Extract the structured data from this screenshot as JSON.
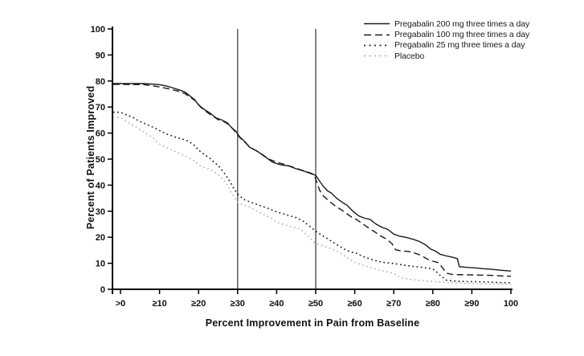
{
  "figure": {
    "background": "#ffffff"
  },
  "chart_data": {
    "type": "line",
    "title": "",
    "xlabel": "Percent Improvement in Pain from Baseline",
    "ylabel": "Percent of Patients Improved",
    "xlim": [
      0,
      100
    ],
    "ylim": [
      0,
      100
    ],
    "grid": false,
    "legend_position": "top-right",
    "axis_color": "#000000",
    "reference_line_color": "#333333",
    "x_tick_values": [
      0,
      10,
      20,
      30,
      40,
      50,
      60,
      70,
      80,
      90,
      100
    ],
    "x_tick_labels": [
      ">0",
      "≥10",
      "≥20",
      "≥30",
      "≥40",
      "≥50",
      "≥60",
      "≥70",
      "≥80",
      "≥90",
      "100"
    ],
    "y_tick_values": [
      0,
      10,
      20,
      30,
      40,
      50,
      60,
      70,
      80,
      90,
      100
    ],
    "y_tick_labels": [
      "0",
      "10",
      "20",
      "30",
      "40",
      "50",
      "60",
      "70",
      "80",
      "90",
      "100"
    ],
    "reference_lines_x": [
      30,
      50
    ],
    "series": [
      {
        "name": "Pregabalin 200 mg three times a day",
        "key": "pregabalin-200mg",
        "style": "solid",
        "color": "#1a1a1a",
        "width": 1.4,
        "points": [
          [
            0,
            79
          ],
          [
            6,
            79
          ],
          [
            10,
            78.6
          ],
          [
            12,
            78
          ],
          [
            13.5,
            77.3
          ],
          [
            15,
            76.6
          ],
          [
            16.5,
            75.8
          ],
          [
            18,
            74
          ],
          [
            19,
            72.8
          ],
          [
            20,
            70.8
          ],
          [
            21.5,
            69
          ],
          [
            23,
            67.6
          ],
          [
            24.5,
            65.8
          ],
          [
            26,
            65
          ],
          [
            27.5,
            63.8
          ],
          [
            28.5,
            62
          ],
          [
            29.5,
            60.8
          ],
          [
            30.5,
            58.6
          ],
          [
            32,
            56.5
          ],
          [
            33,
            54.6
          ],
          [
            35,
            53.1
          ],
          [
            37,
            50.9
          ],
          [
            39,
            48.8
          ],
          [
            41,
            47.8
          ],
          [
            43,
            47.4
          ],
          [
            45,
            46.3
          ],
          [
            47,
            45.4
          ],
          [
            49,
            44.3
          ],
          [
            50,
            43.8
          ],
          [
            51,
            41.5
          ],
          [
            52,
            39.5
          ],
          [
            53,
            37.8
          ],
          [
            54,
            37
          ],
          [
            55.5,
            34.8
          ],
          [
            57,
            33.2
          ],
          [
            58,
            32.3
          ],
          [
            59.5,
            30
          ],
          [
            61,
            28.2
          ],
          [
            62.5,
            27.3
          ],
          [
            64,
            26.8
          ],
          [
            65.5,
            25
          ],
          [
            67,
            23.8
          ],
          [
            68.5,
            23
          ],
          [
            70,
            21.2
          ],
          [
            71.5,
            20.4
          ],
          [
            73,
            20
          ],
          [
            75,
            19.2
          ],
          [
            76.5,
            18.4
          ],
          [
            78,
            17.2
          ],
          [
            79.5,
            15.4
          ],
          [
            80.5,
            14.8
          ],
          [
            82,
            13.4
          ],
          [
            83.5,
            12.8
          ],
          [
            85,
            12.3
          ],
          [
            86.3,
            11.8
          ],
          [
            86.8,
            8.7
          ],
          [
            89,
            8.4
          ],
          [
            91,
            8.2
          ],
          [
            93,
            7.9
          ],
          [
            95,
            7.7
          ],
          [
            97.5,
            7.3
          ],
          [
            100,
            7
          ]
        ]
      },
      {
        "name": "Pregabalin 100 mg three times a day",
        "key": "pregabalin-100mg",
        "style": "dashed",
        "color": "#1a1a1a",
        "width": 1.4,
        "points": [
          [
            0,
            78.7
          ],
          [
            6,
            78.6
          ],
          [
            9,
            78
          ],
          [
            11,
            77.4
          ],
          [
            13,
            76.8
          ],
          [
            15,
            76
          ],
          [
            16.5,
            75.2
          ],
          [
            18,
            73.6
          ],
          [
            19.5,
            72
          ],
          [
            20.5,
            70
          ],
          [
            22,
            68.2
          ],
          [
            23.5,
            66.6
          ],
          [
            25,
            65.2
          ],
          [
            26.5,
            64.4
          ],
          [
            28,
            63
          ],
          [
            29,
            61.2
          ],
          [
            30.5,
            58.4
          ],
          [
            31.5,
            57
          ],
          [
            33,
            54.8
          ],
          [
            35,
            53
          ],
          [
            36.5,
            51.6
          ],
          [
            38,
            50
          ],
          [
            40,
            48.8
          ],
          [
            42,
            48
          ],
          [
            44,
            47
          ],
          [
            46,
            46
          ],
          [
            48,
            45
          ],
          [
            49.5,
            44.2
          ],
          [
            50,
            42.3
          ],
          [
            51,
            38
          ],
          [
            52,
            35.8
          ],
          [
            53.5,
            33.8
          ],
          [
            55,
            32
          ],
          [
            56.5,
            30.6
          ],
          [
            58,
            29
          ],
          [
            59.5,
            27.4
          ],
          [
            60.5,
            26.8
          ],
          [
            62,
            25.2
          ],
          [
            63.5,
            23.6
          ],
          [
            65,
            22.2
          ],
          [
            66.5,
            20.6
          ],
          [
            68,
            19.4
          ],
          [
            69.5,
            17.6
          ],
          [
            70.5,
            15.2
          ],
          [
            72,
            14.7
          ],
          [
            74,
            14.5
          ],
          [
            76,
            13.6
          ],
          [
            77.5,
            12.5
          ],
          [
            79,
            11.3
          ],
          [
            80,
            10.8
          ],
          [
            81.5,
            10.2
          ],
          [
            82.5,
            8.2
          ],
          [
            83.5,
            6.2
          ],
          [
            85,
            5.7
          ],
          [
            88,
            5.6
          ],
          [
            91,
            5.5
          ],
          [
            94,
            5.4
          ],
          [
            97,
            5.2
          ],
          [
            100,
            5
          ]
        ]
      },
      {
        "name": "Pregabalin 25 mg three times a day",
        "key": "pregabalin-25mg",
        "style": "dotted",
        "color": "#222222",
        "width": 1.6,
        "points": [
          [
            0,
            68
          ],
          [
            1.5,
            67
          ],
          [
            3,
            66.2
          ],
          [
            4.5,
            64.8
          ],
          [
            6,
            63.8
          ],
          [
            7.5,
            62.8
          ],
          [
            9,
            61.8
          ],
          [
            10,
            61
          ],
          [
            11.5,
            59.8
          ],
          [
            13,
            59
          ],
          [
            14.5,
            58.2
          ],
          [
            16,
            57.6
          ],
          [
            17.5,
            56.8
          ],
          [
            19,
            55.2
          ],
          [
            20,
            53.4
          ],
          [
            21.5,
            51.8
          ],
          [
            23,
            50.2
          ],
          [
            24,
            48.8
          ],
          [
            25,
            47.6
          ],
          [
            26.5,
            44.8
          ],
          [
            28,
            41.5
          ],
          [
            29,
            38.8
          ],
          [
            30,
            36.6
          ],
          [
            31.5,
            34.6
          ],
          [
            33,
            33.6
          ],
          [
            35,
            32.6
          ],
          [
            36.5,
            31.8
          ],
          [
            38,
            31
          ],
          [
            39.5,
            30
          ],
          [
            41,
            29.3
          ],
          [
            43,
            28.4
          ],
          [
            45,
            27.5
          ],
          [
            47,
            26
          ],
          [
            48.5,
            24.2
          ],
          [
            50,
            22.3
          ],
          [
            51.5,
            20.8
          ],
          [
            53,
            19.5
          ],
          [
            54.5,
            18
          ],
          [
            56,
            16.6
          ],
          [
            57.5,
            15.3
          ],
          [
            59,
            14.3
          ],
          [
            60.5,
            13.8
          ],
          [
            62,
            12.7
          ],
          [
            64,
            11.6
          ],
          [
            66,
            10.7
          ],
          [
            68,
            10.2
          ],
          [
            70,
            9.9
          ],
          [
            72.5,
            9.3
          ],
          [
            75,
            8.8
          ],
          [
            77.5,
            8.4
          ],
          [
            80,
            7.8
          ],
          [
            81,
            6.6
          ],
          [
            82,
            5.2
          ],
          [
            83.5,
            3.5
          ],
          [
            85,
            3.2
          ],
          [
            88,
            3
          ],
          [
            91,
            2.9
          ],
          [
            94,
            2.8
          ],
          [
            97,
            2.6
          ],
          [
            100,
            2.5
          ]
        ]
      },
      {
        "name": "Placebo",
        "key": "placebo",
        "style": "dotted",
        "color": "#b3b3b3",
        "width": 1.5,
        "points": [
          [
            0,
            66
          ],
          [
            1.5,
            64.6
          ],
          [
            3,
            63.2
          ],
          [
            4.5,
            61.8
          ],
          [
            6,
            60.4
          ],
          [
            7.5,
            59
          ],
          [
            9,
            57.2
          ],
          [
            10,
            55.8
          ],
          [
            11.5,
            54.6
          ],
          [
            13,
            53.6
          ],
          [
            14.5,
            52.6
          ],
          [
            16,
            51.6
          ],
          [
            17.5,
            50.6
          ],
          [
            19,
            49.2
          ],
          [
            20,
            47.8
          ],
          [
            21.5,
            46.8
          ],
          [
            23,
            46
          ],
          [
            24.5,
            44.6
          ],
          [
            25.5,
            43.4
          ],
          [
            27,
            41
          ],
          [
            28.5,
            36.8
          ],
          [
            30,
            33.4
          ],
          [
            31.5,
            32.4
          ],
          [
            33,
            31.6
          ],
          [
            34.5,
            30.4
          ],
          [
            36,
            29.2
          ],
          [
            38,
            27.8
          ],
          [
            40,
            25.8
          ],
          [
            42,
            24.8
          ],
          [
            44,
            24
          ],
          [
            46,
            23.2
          ],
          [
            47.5,
            21.2
          ],
          [
            49,
            19
          ],
          [
            50,
            17.6
          ],
          [
            52,
            16.6
          ],
          [
            54,
            15.6
          ],
          [
            56,
            14.2
          ],
          [
            58,
            12.2
          ],
          [
            60,
            10.4
          ],
          [
            62,
            9.3
          ],
          [
            64,
            8.4
          ],
          [
            66,
            7.5
          ],
          [
            68,
            6.8
          ],
          [
            70,
            6.1
          ],
          [
            71,
            5
          ],
          [
            72.5,
            4.2
          ],
          [
            75,
            3.7
          ],
          [
            78,
            3.2
          ],
          [
            80,
            3
          ],
          [
            84,
            2.6
          ],
          [
            88,
            2.3
          ],
          [
            92,
            2.1
          ],
          [
            96,
            2
          ],
          [
            100,
            2
          ]
        ]
      }
    ]
  }
}
